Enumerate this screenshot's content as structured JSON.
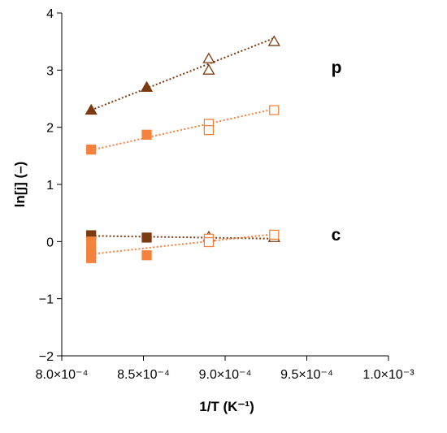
{
  "chart_data": {
    "type": "scatter",
    "xlabel": "1/T (K⁻¹)",
    "ylabel": "ln[j] (–)",
    "xlim": [
      0.0008,
      0.001
    ],
    "ylim": [
      -2,
      4
    ],
    "x_ticks": [
      0.0008,
      0.00085,
      0.0009,
      0.00095,
      0.001
    ],
    "x_tick_labels": [
      "8.0×10⁻⁴",
      "8.5×10⁻⁴",
      "9.0×10⁻⁴",
      "9.5×10⁻⁴",
      "1.0×10⁻³"
    ],
    "y_ticks": [
      -2,
      -1,
      0,
      1,
      2,
      3,
      4
    ],
    "y_tick_labels": [
      "−2",
      "−1",
      "0",
      "1",
      "2",
      "3",
      "4"
    ],
    "grid": false,
    "legend": "none",
    "annotations": [
      {
        "text": "p",
        "x": 0.000965,
        "y": 2.95
      },
      {
        "text": "c",
        "x": 0.000965,
        "y": 0.02
      }
    ],
    "series": [
      {
        "group": "p",
        "color": "#7B3A10",
        "points": [
          {
            "x": 0.000818,
            "y": 2.3,
            "marker": "triangle",
            "filled": true
          },
          {
            "x": 0.000852,
            "y": 2.7,
            "marker": "triangle",
            "filled": true
          },
          {
            "x": 0.00089,
            "y": 3.2,
            "marker": "triangle",
            "filled": false
          },
          {
            "x": 0.00089,
            "y": 3.0,
            "marker": "triangle",
            "filled": false
          },
          {
            "x": 0.00093,
            "y": 3.5,
            "marker": "triangle",
            "filled": false
          }
        ],
        "trendline": [
          [
            0.000818,
            2.3
          ],
          [
            0.00093,
            3.56
          ]
        ]
      },
      {
        "group": "p",
        "color": "#F5823C",
        "points": [
          {
            "x": 0.000818,
            "y": 1.61,
            "marker": "square",
            "filled": true
          },
          {
            "x": 0.000852,
            "y": 1.87,
            "marker": "square",
            "filled": true
          },
          {
            "x": 0.00089,
            "y": 2.06,
            "marker": "square",
            "filled": false
          },
          {
            "x": 0.00089,
            "y": 1.95,
            "marker": "square",
            "filled": false
          },
          {
            "x": 0.00093,
            "y": 2.3,
            "marker": "square",
            "filled": false
          }
        ],
        "trendline": [
          [
            0.000818,
            1.6
          ],
          [
            0.00093,
            2.32
          ]
        ]
      },
      {
        "group": "c",
        "color": "#7B3A10",
        "points": [
          {
            "x": 0.000818,
            "y": 0.11,
            "marker": "square",
            "filled": true
          },
          {
            "x": 0.000852,
            "y": 0.07,
            "marker": "square",
            "filled": true
          },
          {
            "x": 0.00089,
            "y": 0.08,
            "marker": "triangle",
            "filled": false
          },
          {
            "x": 0.00093,
            "y": 0.07,
            "marker": "triangle",
            "filled": false
          }
        ],
        "trendline": [
          [
            0.000818,
            0.1
          ],
          [
            0.00093,
            0.05
          ]
        ]
      },
      {
        "group": "c",
        "color": "#F5823C",
        "points": [
          {
            "x": 0.000818,
            "y": 0.0,
            "marker": "square",
            "filled": true
          },
          {
            "x": 0.000818,
            "y": -0.12,
            "marker": "square",
            "filled": true
          },
          {
            "x": 0.000818,
            "y": -0.22,
            "marker": "square",
            "filled": true
          },
          {
            "x": 0.000818,
            "y": -0.29,
            "marker": "square",
            "filled": true
          },
          {
            "x": 0.000852,
            "y": -0.24,
            "marker": "square",
            "filled": true
          },
          {
            "x": 0.00089,
            "y": 0.05,
            "marker": "square",
            "filled": false
          },
          {
            "x": 0.00089,
            "y": -0.01,
            "marker": "square",
            "filled": false
          },
          {
            "x": 0.00093,
            "y": 0.12,
            "marker": "square",
            "filled": false
          }
        ],
        "trendline": [
          [
            0.000818,
            -0.22
          ],
          [
            0.00093,
            0.13
          ]
        ]
      }
    ]
  }
}
